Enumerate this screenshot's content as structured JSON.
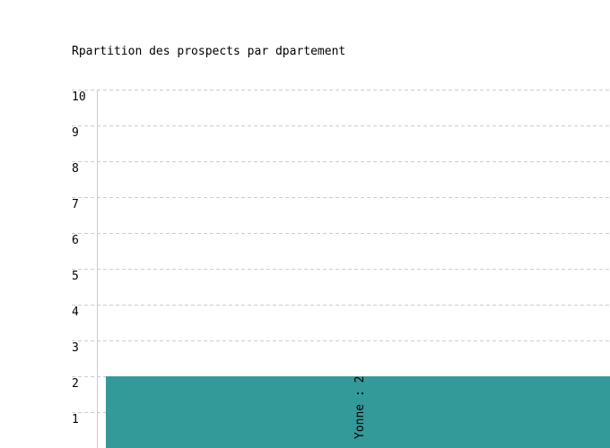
{
  "chart_data": {
    "type": "bar",
    "title": "Rpartition des prospects par dpartement",
    "categories": [
      "Yonne"
    ],
    "values": [
      2
    ],
    "data_labels": [
      "Yonne : 2"
    ],
    "ylim": [
      0,
      10
    ],
    "yticks": [
      1,
      2,
      3,
      4,
      5,
      6,
      7,
      8,
      9,
      10
    ],
    "grid": true,
    "bar_color": "#339999",
    "grid_color": "#cccccc"
  }
}
